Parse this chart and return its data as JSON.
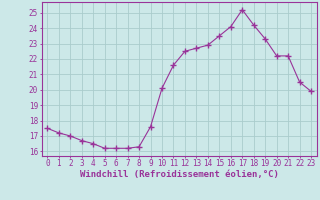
{
  "x": [
    0,
    1,
    2,
    3,
    4,
    5,
    6,
    7,
    8,
    9,
    10,
    11,
    12,
    13,
    14,
    15,
    16,
    17,
    18,
    19,
    20,
    21,
    22,
    23
  ],
  "y": [
    17.5,
    17.2,
    17.0,
    16.7,
    16.5,
    16.2,
    16.2,
    16.2,
    16.3,
    17.6,
    20.1,
    21.6,
    22.5,
    22.7,
    22.9,
    23.5,
    24.1,
    25.2,
    24.2,
    23.3,
    22.2,
    22.2,
    20.5,
    19.9
  ],
  "line_color": "#993399",
  "marker": "+",
  "marker_size": 4,
  "xlabel": "Windchill (Refroidissement éolien,°C)",
  "xlabel_fontsize": 6.5,
  "ytick_labels": [
    "16",
    "17",
    "18",
    "19",
    "20",
    "21",
    "22",
    "23",
    "24",
    "25"
  ],
  "ytick_values": [
    16,
    17,
    18,
    19,
    20,
    21,
    22,
    23,
    24,
    25
  ],
  "xlim": [
    -0.5,
    23.5
  ],
  "ylim": [
    15.7,
    25.7
  ],
  "bg_color": "#cce8e8",
  "grid_color": "#aacccc",
  "spine_color": "#993399",
  "tick_color": "#993399",
  "label_color": "#993399",
  "tick_fontsize": 5.5
}
